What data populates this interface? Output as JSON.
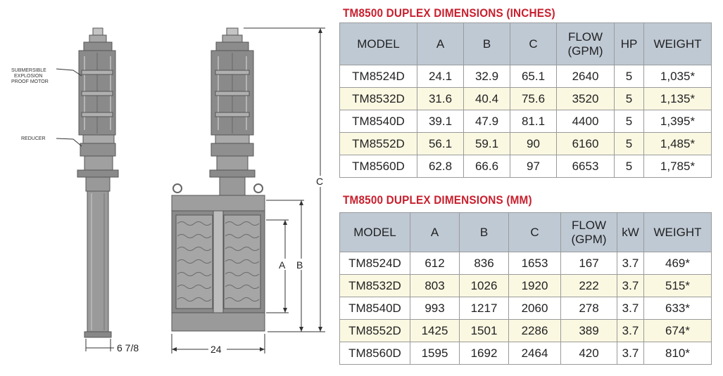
{
  "drawing": {
    "motor_label_lines": [
      "SUBMERSIBLE",
      "EXPLOSION",
      "PROOF MOTOR"
    ],
    "reducer_label": "REDUCER",
    "dim_a": "A",
    "dim_b": "B",
    "dim_c": "C",
    "width_side": "6 7/8",
    "width_front": "24"
  },
  "inches_table": {
    "title": "TM8500 DUPLEX DIMENSIONS (INCHES)",
    "headers": [
      "MODEL",
      "A",
      "B",
      "C",
      "FLOW (GPM)",
      "HP",
      "WEIGHT"
    ],
    "rows": [
      [
        "TM8524D",
        "24.1",
        "32.9",
        "65.1",
        "2640",
        "5",
        "1,035*"
      ],
      [
        "TM8532D",
        "31.6",
        "40.4",
        "75.6",
        "3520",
        "5",
        "1,135*"
      ],
      [
        "TM8540D",
        "39.1",
        "47.9",
        "81.1",
        "4400",
        "5",
        "1,395*"
      ],
      [
        "TM8552D",
        "56.1",
        "59.1",
        "90",
        "6160",
        "5",
        "1,485*"
      ],
      [
        "TM8560D",
        "62.8",
        "66.6",
        "97",
        "6653",
        "5",
        "1,785*"
      ]
    ]
  },
  "mm_table": {
    "title": "TM8500 DUPLEX DIMENSIONS (MM)",
    "headers": [
      "MODEL",
      "A",
      "B",
      "C",
      "FLOW (GPM)",
      "kW",
      "WEIGHT"
    ],
    "rows": [
      [
        "TM8524D",
        "612",
        "836",
        "1653",
        "167",
        "3.7",
        "469*"
      ],
      [
        "TM8532D",
        "803",
        "1026",
        "1920",
        "222",
        "3.7",
        "515*"
      ],
      [
        "TM8540D",
        "993",
        "1217",
        "2060",
        "278",
        "3.7",
        "633*"
      ],
      [
        "TM8552D",
        "1425",
        "1501",
        "2286",
        "389",
        "3.7",
        "674*"
      ],
      [
        "TM8560D",
        "1595",
        "1692",
        "2464",
        "420",
        "3.7",
        "810*"
      ]
    ]
  }
}
